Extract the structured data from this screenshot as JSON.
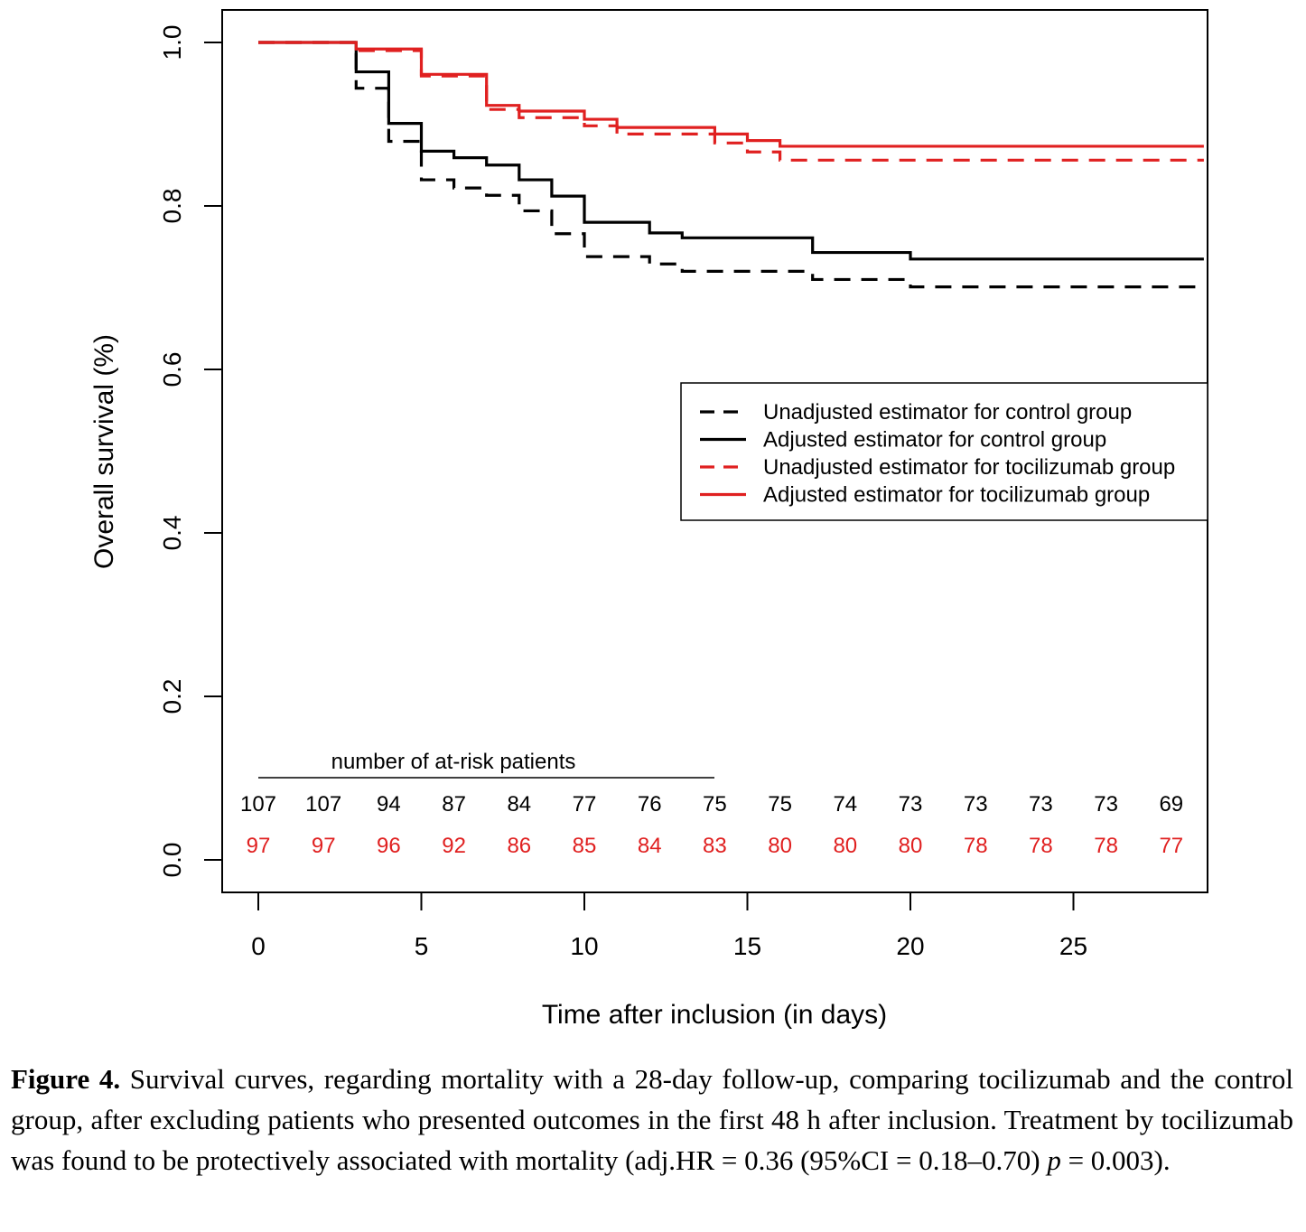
{
  "chart_data": {
    "type": "line",
    "step": true,
    "xlabel": "Time after inclusion (in days)",
    "ylabel": "Overall survival (%)",
    "xlim": [
      -1.1,
      29.1
    ],
    "ylim": [
      -0.04,
      1.04
    ],
    "x_ticks": [
      0,
      5,
      10,
      15,
      20,
      25
    ],
    "y_ticks": [
      0.0,
      0.2,
      0.4,
      0.6,
      0.8,
      1.0
    ],
    "y_tick_labels": [
      "0.0",
      "0.2",
      "0.4",
      "0.6",
      "0.8",
      "1.0"
    ],
    "grid": false,
    "legend_position": "center-right",
    "series": [
      {
        "name": "Unadjusted estimator for control group",
        "color": "#000000",
        "dash": true,
        "x": [
          0,
          3,
          4,
          5,
          6,
          7,
          8,
          9,
          10,
          12,
          13,
          17,
          20,
          29
        ],
        "y": [
          1.0,
          0.944,
          0.879,
          0.832,
          0.822,
          0.813,
          0.794,
          0.766,
          0.738,
          0.729,
          0.72,
          0.71,
          0.701,
          0.701
        ]
      },
      {
        "name": "Adjusted estimator for control group",
        "color": "#000000",
        "dash": false,
        "x": [
          0,
          3,
          4,
          5,
          6,
          7,
          8,
          9,
          10,
          12,
          13,
          17,
          20,
          29
        ],
        "y": [
          1.0,
          0.964,
          0.901,
          0.867,
          0.859,
          0.85,
          0.832,
          0.812,
          0.78,
          0.767,
          0.761,
          0.743,
          0.735,
          0.735
        ]
      },
      {
        "name": "Unadjusted estimator for tocilizumab group",
        "color": "#e02020",
        "dash": true,
        "x": [
          0,
          3,
          5,
          7,
          8,
          10,
          11,
          14,
          15,
          16,
          29
        ],
        "y": [
          1.0,
          0.99,
          0.959,
          0.918,
          0.908,
          0.898,
          0.888,
          0.877,
          0.866,
          0.856,
          0.856
        ]
      },
      {
        "name": "Adjusted estimator for tocilizumab group",
        "color": "#e02020",
        "dash": false,
        "x": [
          0,
          3,
          5,
          7,
          8,
          10,
          11,
          14,
          15,
          16,
          29
        ],
        "y": [
          1.0,
          0.992,
          0.961,
          0.923,
          0.916,
          0.906,
          0.896,
          0.888,
          0.88,
          0.873,
          0.873
        ]
      }
    ],
    "at_risk": {
      "title": "number of at-risk patients",
      "times": [
        0,
        2,
        4,
        6,
        8,
        10,
        12,
        14,
        16,
        18,
        20,
        22,
        24,
        26,
        28
      ],
      "control": [
        "107",
        "107",
        "94",
        "87",
        "84",
        "77",
        "76",
        "75",
        "75",
        "74",
        "73",
        "73",
        "73",
        "73",
        "69"
      ],
      "tocilizumab": [
        "97",
        "97",
        "96",
        "92",
        "86",
        "85",
        "84",
        "83",
        "80",
        "80",
        "80",
        "78",
        "78",
        "78",
        "77"
      ]
    }
  },
  "caption": {
    "label": "Figure 4.",
    "text_part1": " Survival curves, regarding mortality with a 28-day follow-up, comparing tocilizumab and the control group, after excluding patients who presented outcomes in the first 48 h after inclusion. Treatment by tocilizumab was found to be protectively associated with mortality (adj.HR = 0.36 (95%CI = 0.18–0.70) ",
    "p_symbol": "p",
    "text_part2": " = 0.003)."
  }
}
